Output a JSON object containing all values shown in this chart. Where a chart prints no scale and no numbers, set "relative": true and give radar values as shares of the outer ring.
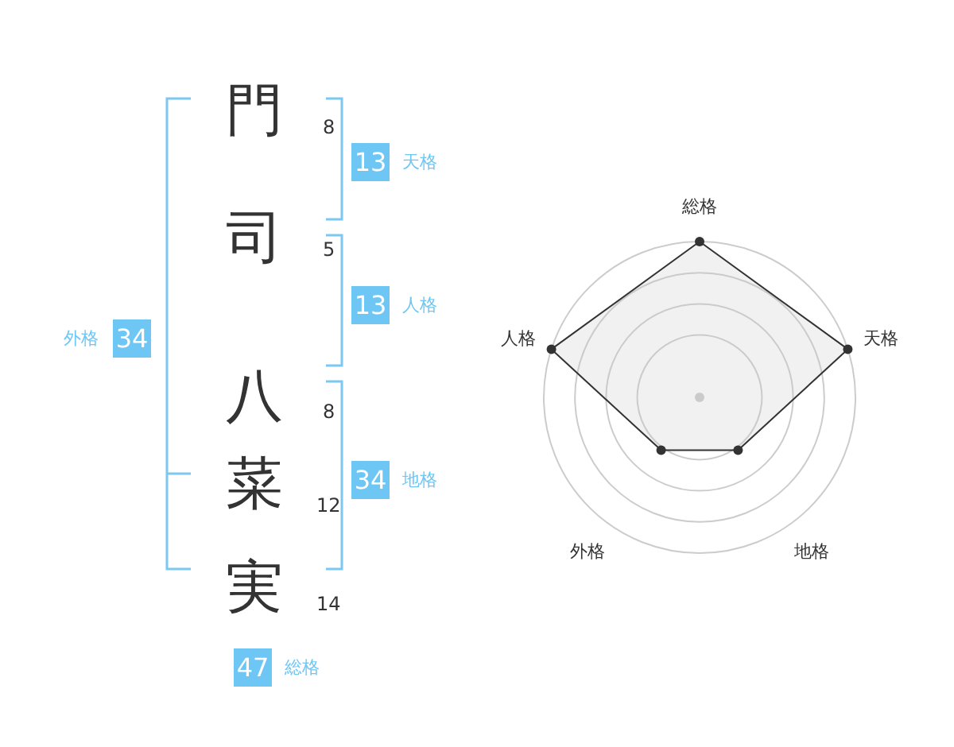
{
  "chart_data": [
    {
      "type": "other",
      "annotations": [
        "門",
        "8",
        "司",
        "5",
        "八",
        "8",
        "菜",
        "12",
        "実",
        "14",
        "13",
        "天格",
        "13",
        "人格",
        "34",
        "地格",
        "34",
        "外格",
        "47",
        "総格"
      ]
    },
    {
      "type": "radar",
      "categories": [
        "総格",
        "天格",
        "地格",
        "外格",
        "人格"
      ],
      "relative": true,
      "grid": true,
      "marker": "circle",
      "series": [
        {
          "color": "#333333",
          "values": [
            1,
            1,
            0.42,
            0.42,
            1
          ]
        }
      ]
    }
  ]
}
